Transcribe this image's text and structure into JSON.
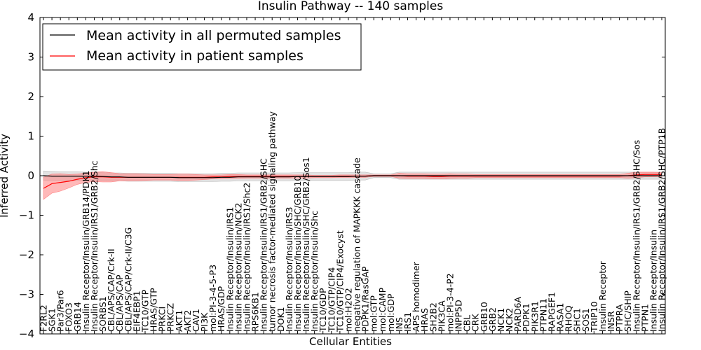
{
  "chart_data": {
    "type": "line",
    "title": "Insulin Pathway -- 140 samples",
    "xlabel": "Cellular Entities",
    "ylabel": "Inferred Activity",
    "ylim": [
      -4,
      4
    ],
    "yticks": [
      "4",
      "3",
      "2",
      "1",
      "0",
      "−1",
      "−2",
      "−3",
      "−4"
    ],
    "ytick_values": [
      4,
      3,
      2,
      1,
      0,
      -1,
      -2,
      -3,
      -4
    ],
    "legend_position": "top-left",
    "categories": [
      "F2RL2",
      "SGK1",
      "Par3/Par6",
      "FOXO3",
      "GRB14",
      "Insulin Receptor/Insulin/GRB14/PDK1",
      "Insulin Receptor/Insulin/IRS1/GRB2/Shc",
      "SORBS1",
      "CBL/APS/CAP/Crk-II",
      "CBL/APS/CAP",
      "CBL/APS/CAP/Crk-II/C3G",
      "EIF4EBP1",
      "TC10/GTP",
      "HRAS/GTP",
      "PRKCI",
      "PRKCZ",
      "AKT1",
      "AKT2",
      "CAV1",
      "PI3K",
      "mol:PI-3-4-5-P3",
      "HRAS/GDP",
      "Insulin Receptor/Insulin/IRS1",
      "Insulin Receptor/Insulin/NCK2",
      "Insulin Receptor/Insulin/IRS1/Shc2",
      "RPS6KB1",
      "Insulin Receptor/Insulin/IRS1/GRB2/SHC",
      "tumor necrosis factor-mediated signaling pathway",
      "DOK1",
      "Insulin Receptor/Insulin/IRS3",
      "Insulin Receptor/Insulin/SHC/GRB10",
      "Insulin Receptor/Insulin/SHC/GRB2/Sos1",
      "Insulin Receptor/Insulin/Shc",
      "TC10/GDP",
      "TC10/GTP/CIP4",
      "TC10/GTP/CIP4/Exocyst",
      "mol:H2O2",
      "negative regulation of MAPKKK cascade",
      "PDPK1/RasGAP",
      "mol:GTP",
      "mol:CAMP",
      "mol:GDP",
      "INS",
      "IRS1",
      "APS homodimer",
      "HRAS",
      "SH2B2",
      "PIK3CA",
      "mol:PI-3-4-P2",
      "INPP5D",
      "CBL",
      "CRK",
      "GRB10",
      "GRB2",
      "NCK1",
      "NCK2",
      "PARD6A",
      "PDPK1",
      "PIK3R1",
      "PTPN11",
      "RAPGEF1",
      "RASA1",
      "RHOQ",
      "SHC1",
      "SOS1",
      "TRIP10",
      "Insulin Receptor",
      "INSR",
      "PTPRA",
      "SHC/SHIP",
      "Insulin Receptor/Insulin/IRS1/GRB2/SHC/Sos",
      "PTPN1",
      "Insulin Receptor/Insulin",
      "Insulin Receptor/Insulin/IRS1/GRB2/SHC/PTP1B"
    ],
    "series": [
      {
        "name": "Mean activity in all permuted samples",
        "color": "#000000",
        "band_color": "#bfbfbf",
        "values": [
          0.0,
          -0.01,
          -0.01,
          -0.01,
          -0.01,
          -0.01,
          -0.01,
          -0.02,
          -0.03,
          -0.03,
          -0.04,
          -0.04,
          -0.04,
          -0.04,
          -0.04,
          -0.04,
          -0.05,
          -0.05,
          -0.05,
          -0.05,
          -0.05,
          -0.04,
          -0.04,
          -0.03,
          -0.03,
          -0.03,
          -0.03,
          -0.03,
          -0.03,
          -0.03,
          -0.02,
          -0.02,
          -0.02,
          -0.02,
          -0.02,
          -0.02,
          -0.02,
          -0.01,
          -0.01,
          0.0,
          0.0,
          0.0,
          0.0,
          0.0,
          0.0,
          0.0,
          0.0,
          0.0,
          0.0,
          0.0,
          0.0,
          0.0,
          0.0,
          0.0,
          0.0,
          0.0,
          0.0,
          0.0,
          0.0,
          0.0,
          0.0,
          0.0,
          0.0,
          0.0,
          0.0,
          0.0,
          0.0,
          0.0,
          0.0,
          0.0,
          0.0,
          0.0,
          0.0,
          0.0
        ],
        "std": [
          0.12,
          0.12,
          0.11,
          0.11,
          0.11,
          0.1,
          0.1,
          0.1,
          0.1,
          0.1,
          0.1,
          0.1,
          0.1,
          0.1,
          0.1,
          0.1,
          0.1,
          0.1,
          0.1,
          0.1,
          0.1,
          0.1,
          0.1,
          0.1,
          0.1,
          0.1,
          0.1,
          0.1,
          0.1,
          0.1,
          0.1,
          0.1,
          0.1,
          0.1,
          0.1,
          0.1,
          0.1,
          0.1,
          0.1,
          0.05,
          0.05,
          0.05,
          0.09,
          0.09,
          0.09,
          0.09,
          0.09,
          0.09,
          0.09,
          0.09,
          0.09,
          0.09,
          0.09,
          0.09,
          0.09,
          0.09,
          0.09,
          0.09,
          0.09,
          0.09,
          0.09,
          0.09,
          0.09,
          0.09,
          0.09,
          0.09,
          0.09,
          0.09,
          0.09,
          0.09,
          0.09,
          0.09,
          0.09,
          0.09
        ]
      },
      {
        "name": "Mean activity in patient samples",
        "color": "#ff0000",
        "band_color": "#ff8080",
        "values": [
          -0.32,
          -0.2,
          -0.17,
          -0.14,
          -0.09,
          -0.05,
          -0.03,
          -0.03,
          -0.04,
          -0.04,
          -0.04,
          -0.04,
          -0.04,
          -0.04,
          -0.04,
          -0.04,
          -0.04,
          -0.04,
          -0.04,
          -0.04,
          -0.03,
          -0.03,
          -0.02,
          -0.02,
          -0.02,
          -0.02,
          -0.02,
          -0.02,
          -0.02,
          -0.02,
          -0.02,
          -0.02,
          -0.02,
          -0.02,
          -0.02,
          -0.01,
          -0.01,
          -0.01,
          -0.01,
          0.0,
          0.0,
          0.0,
          0.0,
          -0.01,
          -0.01,
          -0.01,
          -0.02,
          -0.02,
          -0.01,
          -0.01,
          -0.01,
          -0.01,
          -0.01,
          -0.01,
          -0.01,
          -0.01,
          -0.01,
          -0.01,
          -0.01,
          -0.01,
          -0.01,
          -0.01,
          -0.01,
          -0.01,
          -0.01,
          -0.01,
          -0.01,
          -0.01,
          -0.01,
          0.0,
          0.02,
          0.03,
          0.03,
          0.03
        ],
        "std": [
          0.28,
          0.24,
          0.22,
          0.17,
          0.13,
          0.12,
          0.12,
          0.13,
          0.12,
          0.09,
          0.09,
          0.09,
          0.08,
          0.07,
          0.07,
          0.07,
          0.08,
          0.08,
          0.07,
          0.06,
          0.05,
          0.05,
          0.05,
          0.05,
          0.04,
          0.04,
          0.04,
          0.04,
          0.04,
          0.04,
          0.04,
          0.04,
          0.03,
          0.03,
          0.03,
          0.03,
          0.03,
          0.03,
          0.03,
          0.02,
          0.02,
          0.02,
          0.06,
          0.06,
          0.06,
          0.06,
          0.06,
          0.06,
          0.06,
          0.05,
          0.05,
          0.04,
          0.04,
          0.04,
          0.04,
          0.04,
          0.04,
          0.04,
          0.04,
          0.04,
          0.04,
          0.04,
          0.04,
          0.04,
          0.04,
          0.04,
          0.04,
          0.04,
          0.04,
          0.06,
          0.07,
          0.06,
          0.06,
          0.05
        ]
      }
    ]
  }
}
